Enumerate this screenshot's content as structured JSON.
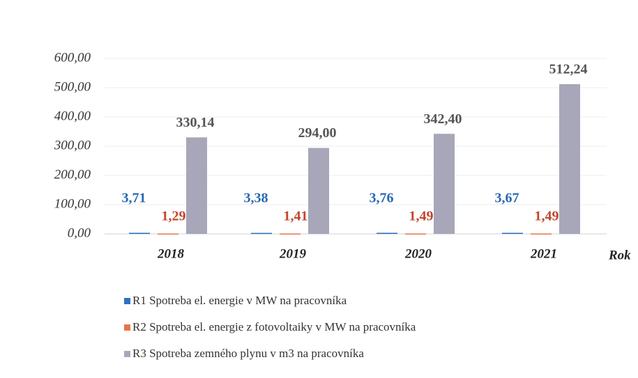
{
  "chart_data": {
    "type": "bar",
    "x_label": "Rok",
    "categories": [
      "2018",
      "2019",
      "2020",
      "2021"
    ],
    "series": [
      {
        "name": "R1 Spotreba el. energie v MW na pracovníka",
        "color": "#2e72c0",
        "label_color": "#2a67b3",
        "values": [
          3.71,
          3.38,
          3.76,
          3.67
        ],
        "value_labels": [
          "3,71",
          "3,38",
          "3,76",
          "3,67"
        ]
      },
      {
        "name": "R2 Spotreba el. energie z fotovoltaiky v MW na pracovníka",
        "color": "#e5764a",
        "label_color": "#c2452c",
        "values": [
          1.29,
          1.41,
          1.49,
          1.49
        ],
        "value_labels": [
          "1,29",
          "1,41",
          "1,49",
          "1,49"
        ]
      },
      {
        "name": "R3 Spotreba zemného plynu v m3 na pracovníka",
        "color": "#a7a7b9",
        "label_color": "#555555",
        "values": [
          330.14,
          294.0,
          342.4,
          512.24
        ],
        "value_labels": [
          "330,14",
          "294,00",
          "342,40",
          "512,24"
        ]
      }
    ],
    "ylim": [
      0,
      600
    ],
    "yticks": [
      {
        "value": 0,
        "label": "0,00"
      },
      {
        "value": 100,
        "label": "100,00"
      },
      {
        "value": 200,
        "label": "200,00"
      },
      {
        "value": 300,
        "label": "300,00"
      },
      {
        "value": 400,
        "label": "400,00"
      },
      {
        "value": 500,
        "label": "500,00"
      },
      {
        "value": 600,
        "label": "600,00"
      }
    ],
    "grid": true
  }
}
